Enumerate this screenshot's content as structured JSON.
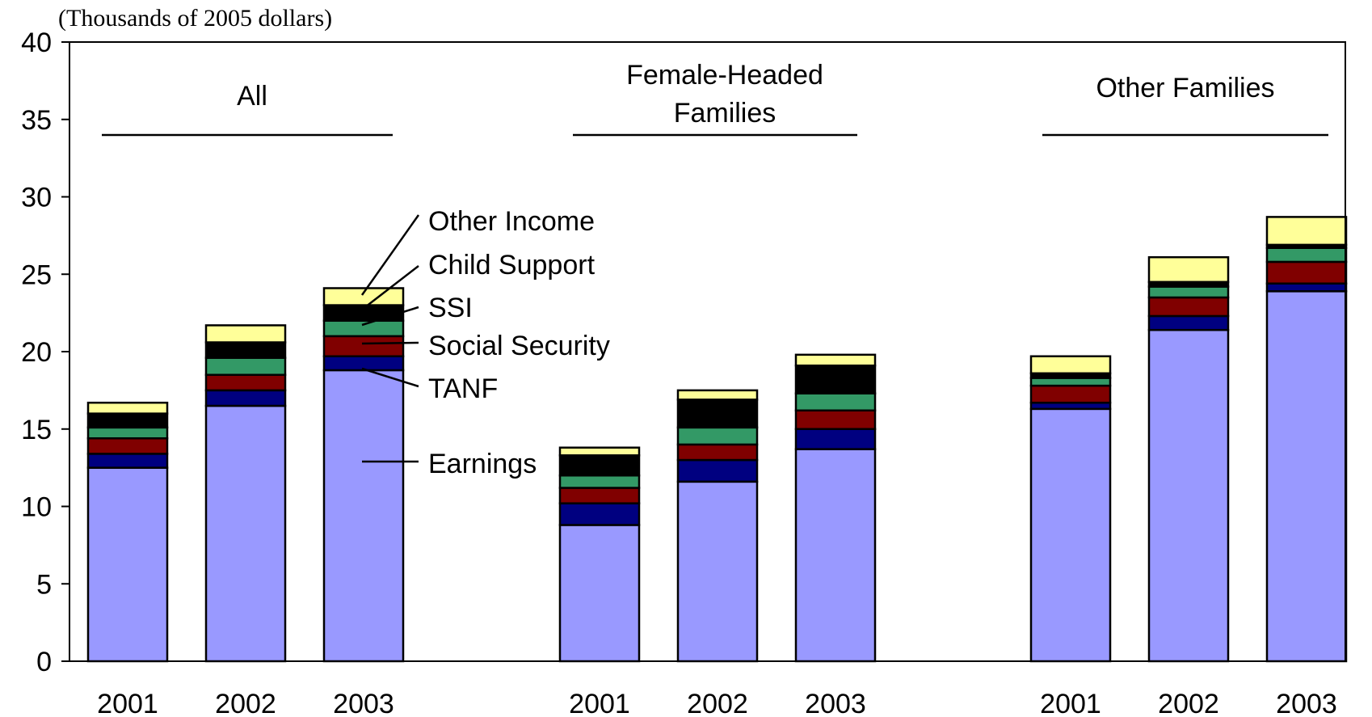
{
  "chart_data": {
    "type": "bar",
    "stacked": true,
    "units_label": "(Thousands of 2005 dollars)",
    "ylim": [
      0,
      40
    ],
    "yticks": [
      "0",
      "5",
      "10",
      "15",
      "20",
      "25",
      "30",
      "35",
      "40"
    ],
    "grid": false,
    "legend_placement": "inline-annotations",
    "groups": [
      {
        "label_lines": [
          "All"
        ],
        "categories": [
          "2001",
          "2002",
          "2003"
        ]
      },
      {
        "label_lines": [
          "Female-Headed",
          "Families"
        ],
        "categories": [
          "2001",
          "2002",
          "2003"
        ]
      },
      {
        "label_lines": [
          "Other Families"
        ],
        "categories": [
          "2001",
          "2002",
          "2003"
        ]
      }
    ],
    "series": [
      {
        "name": "Earnings",
        "color": "#9999ff",
        "values": [
          12.5,
          16.5,
          18.8,
          8.8,
          11.6,
          13.7,
          16.3,
          21.4,
          23.9
        ]
      },
      {
        "name": "TANF",
        "color": "#000080",
        "values": [
          0.9,
          1.0,
          0.9,
          1.4,
          1.4,
          1.3,
          0.4,
          0.9,
          0.5
        ]
      },
      {
        "name": "Social Security",
        "color": "#800000",
        "values": [
          1.0,
          1.0,
          1.3,
          1.0,
          1.0,
          1.2,
          1.1,
          1.2,
          1.4
        ]
      },
      {
        "name": "SSI",
        "color": "#339966",
        "values": [
          0.7,
          1.1,
          1.0,
          0.8,
          1.1,
          1.1,
          0.5,
          0.7,
          0.9
        ]
      },
      {
        "name": "Child Support",
        "color": "#000000",
        "values": [
          0.9,
          1.0,
          1.0,
          1.3,
          1.8,
          1.8,
          0.3,
          0.3,
          0.2
        ]
      },
      {
        "name": "Other Income",
        "color": "#ffff99",
        "values": [
          0.7,
          1.1,
          1.1,
          0.5,
          0.6,
          0.7,
          1.1,
          1.6,
          1.8
        ]
      }
    ]
  }
}
